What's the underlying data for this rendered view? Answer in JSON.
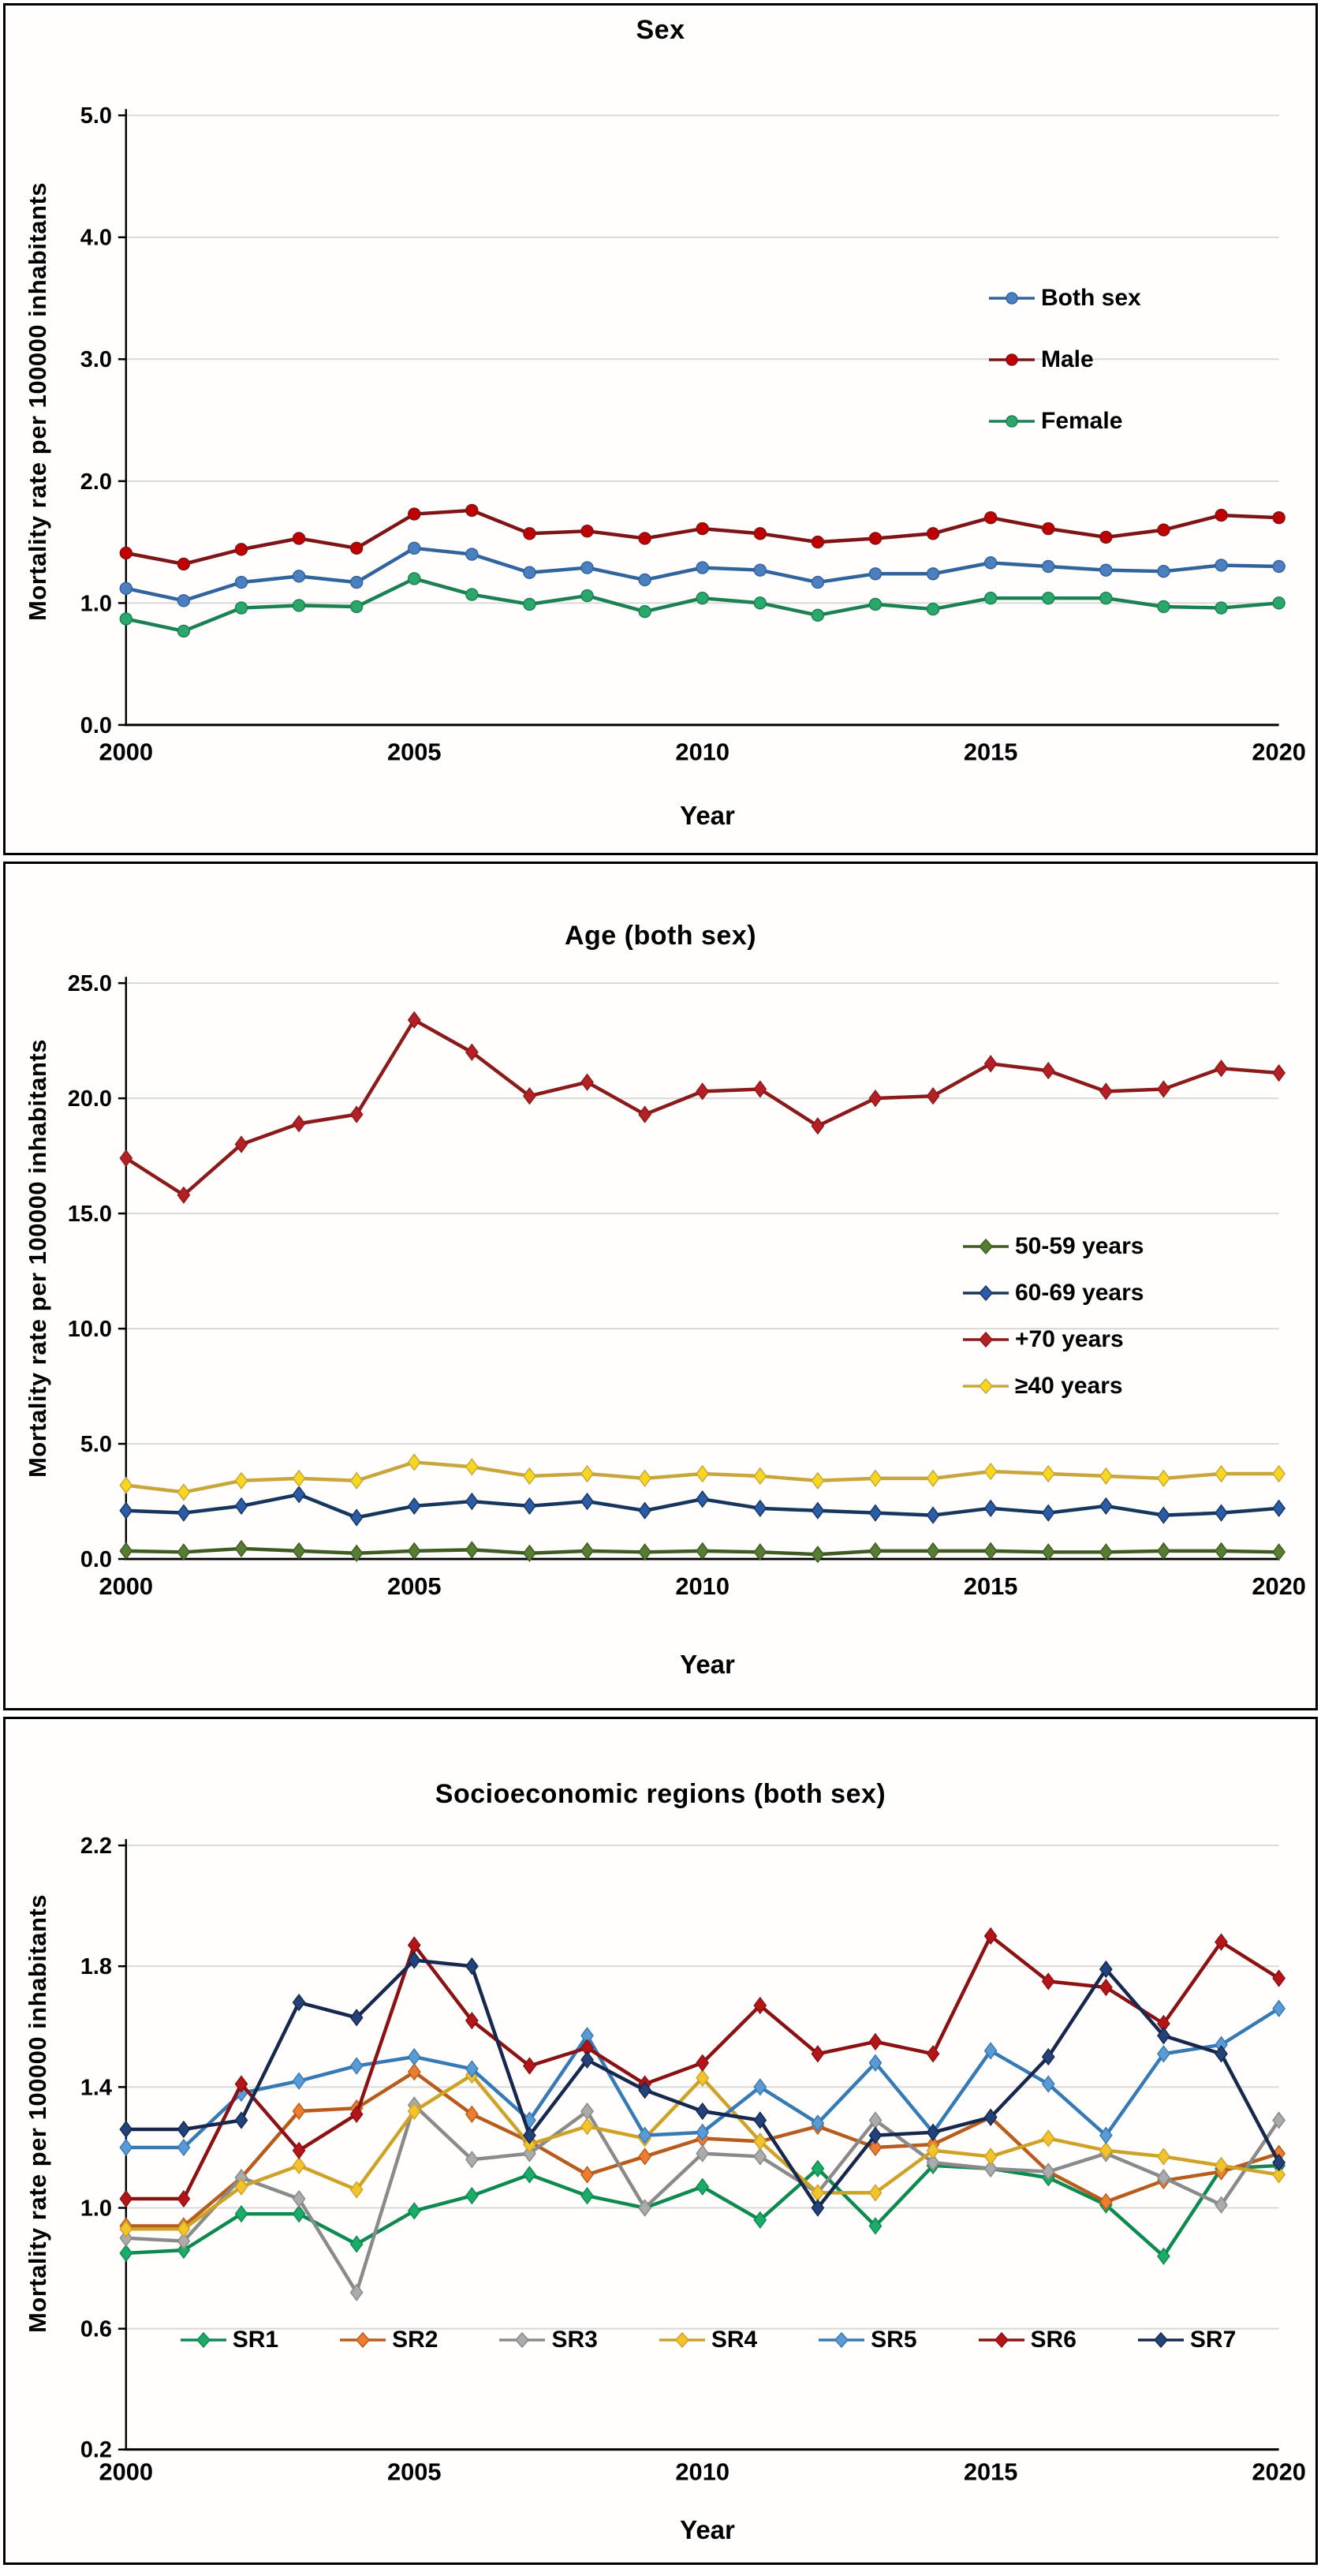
{
  "page": {
    "background": "#ffffff"
  },
  "chart_data": [
    {
      "type": "line",
      "title": "Sex",
      "xlabel": "Year",
      "ylabel": "Mortality rate per 100000 inhabitants",
      "marker": "circle",
      "grid": true,
      "legend_position": "inside-right",
      "x": [
        2000,
        2001,
        2002,
        2003,
        2004,
        2005,
        2006,
        2007,
        2008,
        2009,
        2010,
        2011,
        2012,
        2013,
        2014,
        2015,
        2016,
        2017,
        2018,
        2019,
        2020
      ],
      "xticks": [
        2000,
        2005,
        2010,
        2015,
        2020
      ],
      "ylim": [
        0,
        5
      ],
      "yticks": [
        {
          "v": 0,
          "label": "0.0"
        },
        {
          "v": 1,
          "label": "1.0"
        },
        {
          "v": 2,
          "label": "2.0"
        },
        {
          "v": 3,
          "label": "3.0"
        },
        {
          "v": 4,
          "label": "4.0"
        },
        {
          "v": 5,
          "label": "5.0"
        }
      ],
      "series": [
        {
          "name": "Both sex",
          "line_color": "#31639C",
          "marker_color": "#4C7FC0",
          "values": [
            1.12,
            1.02,
            1.17,
            1.22,
            1.17,
            1.45,
            1.4,
            1.25,
            1.29,
            1.19,
            1.29,
            1.27,
            1.17,
            1.24,
            1.24,
            1.33,
            1.3,
            1.27,
            1.26,
            1.31,
            1.3
          ]
        },
        {
          "name": "Male",
          "line_color": "#7E1416",
          "marker_color": "#C00000",
          "values": [
            1.41,
            1.32,
            1.44,
            1.53,
            1.45,
            1.73,
            1.76,
            1.57,
            1.59,
            1.53,
            1.61,
            1.57,
            1.5,
            1.53,
            1.57,
            1.7,
            1.61,
            1.54,
            1.6,
            1.72,
            1.7
          ]
        },
        {
          "name": "Female",
          "line_color": "#1B8152",
          "marker_color": "#2AA86C",
          "values": [
            0.87,
            0.77,
            0.96,
            0.98,
            0.97,
            1.2,
            1.07,
            0.99,
            1.06,
            0.93,
            1.04,
            1.0,
            0.9,
            0.99,
            0.95,
            1.04,
            1.04,
            1.04,
            0.97,
            0.96,
            1.0
          ]
        }
      ]
    },
    {
      "type": "line",
      "title": "Age (both sex)",
      "xlabel": "Year",
      "ylabel": "Mortality rate per 100000 inhabitants",
      "marker": "diamond",
      "grid": true,
      "legend_position": "inside-right",
      "x": [
        2000,
        2001,
        2002,
        2003,
        2004,
        2005,
        2006,
        2007,
        2008,
        2009,
        2010,
        2011,
        2012,
        2013,
        2014,
        2015,
        2016,
        2017,
        2018,
        2019,
        2020
      ],
      "xticks": [
        2000,
        2005,
        2010,
        2015,
        2020
      ],
      "ylim": [
        0,
        25
      ],
      "yticks": [
        {
          "v": 0,
          "label": "0.0"
        },
        {
          "v": 5,
          "label": "5.0"
        },
        {
          "v": 10,
          "label": "10.0"
        },
        {
          "v": 15,
          "label": "15.0"
        },
        {
          "v": 20,
          "label": "20.0"
        },
        {
          "v": 25,
          "label": "25.0"
        }
      ],
      "series": [
        {
          "name": "50-59 years",
          "line_color": "#3E5C22",
          "marker_color": "#567D31",
          "values": [
            0.35,
            0.3,
            0.45,
            0.35,
            0.25,
            0.35,
            0.4,
            0.25,
            0.35,
            0.3,
            0.35,
            0.3,
            0.2,
            0.35,
            0.35,
            0.35,
            0.3,
            0.3,
            0.35,
            0.35,
            0.3
          ]
        },
        {
          "name": "60-69 years",
          "line_color": "#17365D",
          "marker_color": "#2A5CA8",
          "values": [
            2.1,
            2.0,
            2.3,
            2.8,
            1.8,
            2.3,
            2.5,
            2.3,
            2.5,
            2.1,
            2.6,
            2.2,
            2.1,
            2.0,
            1.9,
            2.2,
            2.0,
            2.3,
            1.9,
            2.0,
            2.2
          ]
        },
        {
          "name": "+70 years",
          "line_color": "#8B1A1A",
          "marker_color": "#B42025",
          "values": [
            17.4,
            15.8,
            18.0,
            18.9,
            19.3,
            23.4,
            22.0,
            20.1,
            20.7,
            19.3,
            20.3,
            20.4,
            18.8,
            20.0,
            20.1,
            21.5,
            21.2,
            20.3,
            20.4,
            21.3,
            21.1
          ]
        },
        {
          "name": "≥40 years",
          "line_color": "#C7A63B",
          "marker_color": "#F7D71F",
          "values": [
            3.2,
            2.9,
            3.4,
            3.5,
            3.4,
            4.2,
            4.0,
            3.6,
            3.7,
            3.5,
            3.7,
            3.6,
            3.4,
            3.5,
            3.5,
            3.8,
            3.7,
            3.6,
            3.5,
            3.7,
            3.7
          ]
        }
      ]
    },
    {
      "type": "line",
      "title": "Socioeconomic regions (both sex)",
      "xlabel": "Year",
      "ylabel": "Mortality rate per 100000 inhabitants",
      "marker": "diamond",
      "grid": true,
      "legend_position": "inside-bottom",
      "x": [
        2000,
        2001,
        2002,
        2003,
        2004,
        2005,
        2006,
        2007,
        2008,
        2009,
        2010,
        2011,
        2012,
        2013,
        2014,
        2015,
        2016,
        2017,
        2018,
        2019,
        2020
      ],
      "xticks": [
        2000,
        2005,
        2010,
        2015,
        2020
      ],
      "ylim": [
        0.2,
        2.2
      ],
      "yticks": [
        {
          "v": 0.2,
          "label": "0.2"
        },
        {
          "v": 0.6,
          "label": "0.6"
        },
        {
          "v": 1.0,
          "label": "1.0"
        },
        {
          "v": 1.4,
          "label": "1.4"
        },
        {
          "v": 1.8,
          "label": "1.8"
        },
        {
          "v": 2.2,
          "label": "2.2"
        }
      ],
      "series": [
        {
          "name": "SR1",
          "line_color": "#0E8A50",
          "marker_color": "#1CAB68",
          "values": [
            0.85,
            0.86,
            0.98,
            0.98,
            0.88,
            0.99,
            1.04,
            1.11,
            1.04,
            1.0,
            1.07,
            0.96,
            1.13,
            0.94,
            1.14,
            1.13,
            1.1,
            1.01,
            0.84,
            1.13,
            1.14
          ]
        },
        {
          "name": "SR2",
          "line_color": "#B85C1B",
          "marker_color": "#ED7D31",
          "values": [
            0.94,
            0.94,
            1.1,
            1.32,
            1.33,
            1.45,
            1.31,
            1.22,
            1.11,
            1.17,
            1.23,
            1.22,
            1.27,
            1.2,
            1.21,
            1.3,
            1.12,
            1.02,
            1.09,
            1.12,
            1.18
          ]
        },
        {
          "name": "SR3",
          "line_color": "#8A8A8A",
          "marker_color": "#ABABAB",
          "values": [
            0.9,
            0.89,
            1.1,
            1.03,
            0.72,
            1.34,
            1.16,
            1.18,
            1.32,
            1.0,
            1.18,
            1.17,
            1.05,
            1.29,
            1.15,
            1.13,
            1.12,
            1.18,
            1.1,
            1.01,
            1.29
          ]
        },
        {
          "name": "SR4",
          "line_color": "#CDA227",
          "marker_color": "#F3C32C",
          "values": [
            0.93,
            0.93,
            1.07,
            1.14,
            1.06,
            1.32,
            1.44,
            1.21,
            1.27,
            1.23,
            1.43,
            1.22,
            1.05,
            1.05,
            1.19,
            1.17,
            1.23,
            1.19,
            1.17,
            1.14,
            1.11
          ]
        },
        {
          "name": "SR5",
          "line_color": "#3579B5",
          "marker_color": "#5B9BD5",
          "values": [
            1.2,
            1.2,
            1.38,
            1.42,
            1.47,
            1.5,
            1.46,
            1.29,
            1.57,
            1.24,
            1.25,
            1.4,
            1.28,
            1.48,
            1.25,
            1.52,
            1.41,
            1.24,
            1.51,
            1.54,
            1.66
          ]
        },
        {
          "name": "SR6",
          "line_color": "#8C1113",
          "marker_color": "#B31518",
          "values": [
            1.03,
            1.03,
            1.41,
            1.19,
            1.31,
            1.87,
            1.62,
            1.47,
            1.53,
            1.41,
            1.48,
            1.67,
            1.51,
            1.55,
            1.51,
            1.9,
            1.75,
            1.73,
            1.61,
            1.88,
            1.76
          ]
        },
        {
          "name": "SR7",
          "line_color": "#16284E",
          "marker_color": "#24427A",
          "values": [
            1.26,
            1.26,
            1.29,
            1.68,
            1.63,
            1.82,
            1.8,
            1.24,
            1.49,
            1.39,
            1.32,
            1.29,
            1.0,
            1.24,
            1.25,
            1.3,
            1.5,
            1.79,
            1.57,
            1.51,
            1.15
          ]
        }
      ]
    }
  ]
}
